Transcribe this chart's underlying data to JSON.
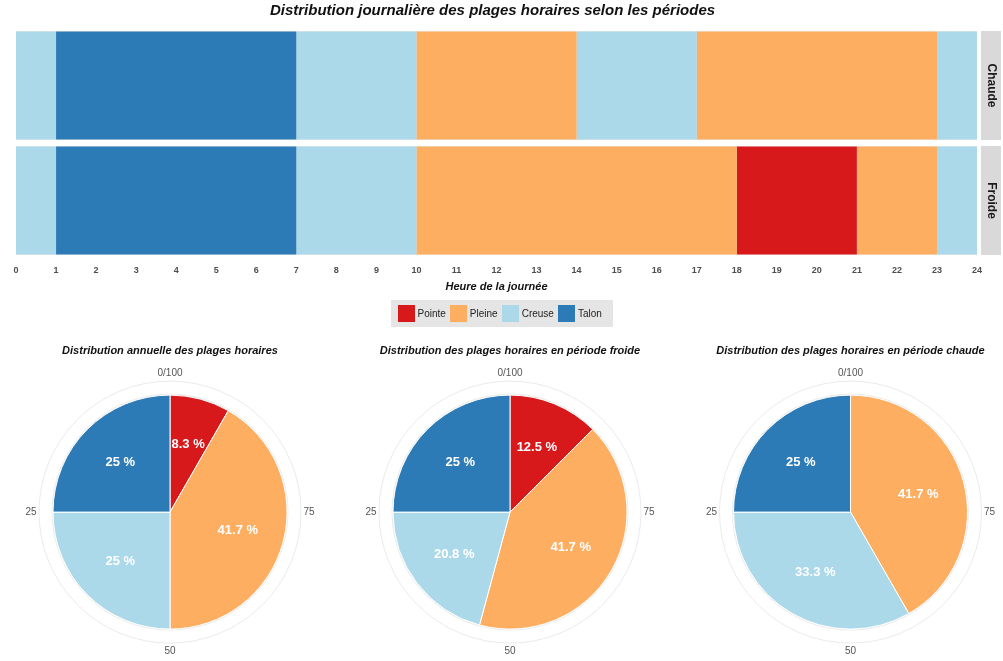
{
  "chart_data": [
    {
      "type": "bar",
      "orientation": "horizontal",
      "stacked": true,
      "title": "Distribution journalière des plages horaires selon les périodes",
      "xlabel": "Heure de la journée",
      "categories": [
        "Chaude",
        "Froide"
      ],
      "xlim": [
        0,
        24
      ],
      "xticks": [
        0,
        1,
        2,
        3,
        4,
        5,
        6,
        7,
        8,
        9,
        10,
        11,
        12,
        13,
        14,
        15,
        16,
        17,
        18,
        19,
        20,
        21,
        22,
        23,
        24
      ],
      "grid": false,
      "legend": false,
      "series": [
        {
          "colors": [
            "#abd9e9",
            "#abd9e9"
          ],
          "values": [
            1,
            1
          ]
        },
        {
          "colors": [
            "#2c7bb6",
            "#2c7bb6"
          ],
          "values": [
            6,
            6
          ]
        },
        {
          "colors": [
            "#abd9e9",
            "#abd9e9"
          ],
          "values": [
            3,
            3
          ]
        },
        {
          "colors": [
            "#fdae61",
            "#fdae61"
          ],
          "values": [
            4,
            8
          ]
        },
        {
          "colors": [
            "#abd9e9",
            "#d7191c"
          ],
          "values": [
            3,
            3
          ]
        },
        {
          "colors": [
            "#fdae61",
            "#fdae61"
          ],
          "values": [
            6,
            2
          ]
        },
        {
          "colors": [
            "#abd9e9",
            "#abd9e9"
          ],
          "values": [
            1,
            1
          ]
        }
      ]
    },
    {
      "type": "pie",
      "title": "Distribution annuelle des plages horaires",
      "categories": [
        "Pointe",
        "Pleine",
        "Creuse",
        "Talon"
      ],
      "values": [
        8.3,
        41.7,
        25,
        25
      ],
      "colors": [
        "#d7191c",
        "#fdae61",
        "#abd9e9",
        "#2c7bb6"
      ],
      "value_labels": [
        "8.3 %",
        "41.7 %",
        "25 %",
        "25 %"
      ],
      "legend": "top",
      "grid": true,
      "annotations": [
        "0/100",
        "25",
        "50",
        "75"
      ]
    },
    {
      "type": "pie",
      "title": "Distribution des plages horaires en période froide",
      "categories": [
        null,
        null,
        null,
        null
      ],
      "values": [
        12.5,
        41.7,
        20.8,
        25
      ],
      "colors": [
        "#d7191c",
        "#fdae61",
        "#abd9e9",
        "#2c7bb6"
      ],
      "value_labels": [
        "12.5 %",
        "41.7 %",
        "20.8 %",
        "25 %"
      ],
      "grid": true,
      "annotations": [
        "0/100",
        "25",
        "50",
        "75"
      ]
    },
    {
      "type": "pie",
      "title": "Distribution des plages horaires en période chaude",
      "categories": [
        null,
        null,
        null
      ],
      "values": [
        41.7,
        33.3,
        25
      ],
      "colors": [
        "#fdae61",
        "#abd9e9",
        "#2c7bb6"
      ],
      "value_labels": [
        "41.7 %",
        "33.3 %",
        "25 %"
      ],
      "grid": true,
      "annotations": [
        "0/100",
        "25",
        "50",
        "75"
      ]
    }
  ]
}
